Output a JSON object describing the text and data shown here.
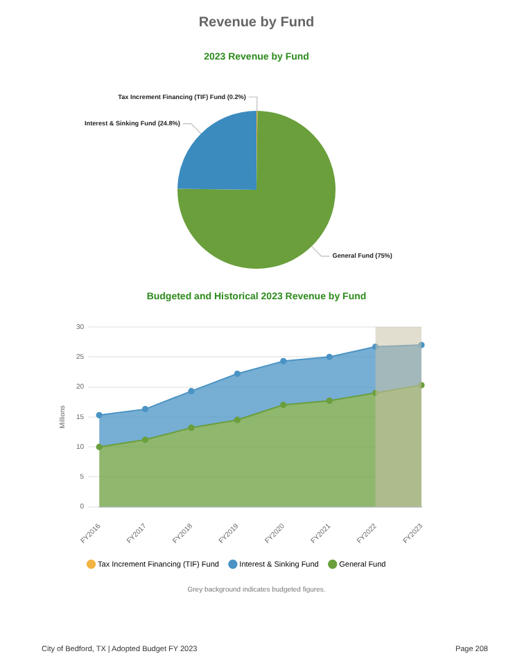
{
  "chart_data": [
    {
      "type": "pie",
      "title": "Revenue by Fund",
      "subtitle": "2023 Revenue by Fund",
      "categories": [
        "Tax Increment Financing (TIF) Fund",
        "General Fund",
        "Interest & Sinking Fund"
      ],
      "values": [
        0.2,
        75,
        24.8
      ],
      "colors": [
        "#f2b440",
        "#6a9f3c",
        "#3b8bbf"
      ],
      "value_labels": [
        "(0.2%)",
        "(75%)",
        "(24.8%)"
      ]
    },
    {
      "type": "area",
      "title": "Budgeted and Historical 2023 Revenue by Fund",
      "ylabel": "Millions",
      "categories": [
        "FY2016",
        "FY2017",
        "FY2018",
        "FY2019",
        "FY2020",
        "FY2021",
        "FY2022",
        "FY2023"
      ],
      "stacked": true,
      "series": [
        {
          "name": "General Fund",
          "color": "#6a9f3c",
          "values": [
            10,
            11.2,
            13.2,
            14.5,
            17,
            17.7,
            19,
            20.3
          ]
        },
        {
          "name": "Interest & Sinking Fund",
          "color": "#4a93c4",
          "values": [
            5.3,
            5.1,
            6.1,
            7.7,
            7.3,
            7.3,
            7.7,
            6.7
          ]
        },
        {
          "name": "Tax Increment Financing (TIF) Fund",
          "color": "#f2b440",
          "values": [
            null,
            null,
            null,
            null,
            null,
            null,
            null,
            null
          ]
        }
      ],
      "ylim": [
        0,
        30
      ],
      "yticks": [
        0,
        5,
        10,
        15,
        20,
        25,
        30
      ],
      "grid": "y",
      "legend": "bottom",
      "marker": "circle",
      "bands": [
        {
          "axis": "x",
          "from": "FY2022",
          "to": "FY2023",
          "color": "#c9c1a8"
        }
      ],
      "annotations": [
        "Grey background indicates budgeted figures.",
        "City of Bedford, TX | Adopted Budget FY 2023",
        "Page 208"
      ]
    }
  ]
}
